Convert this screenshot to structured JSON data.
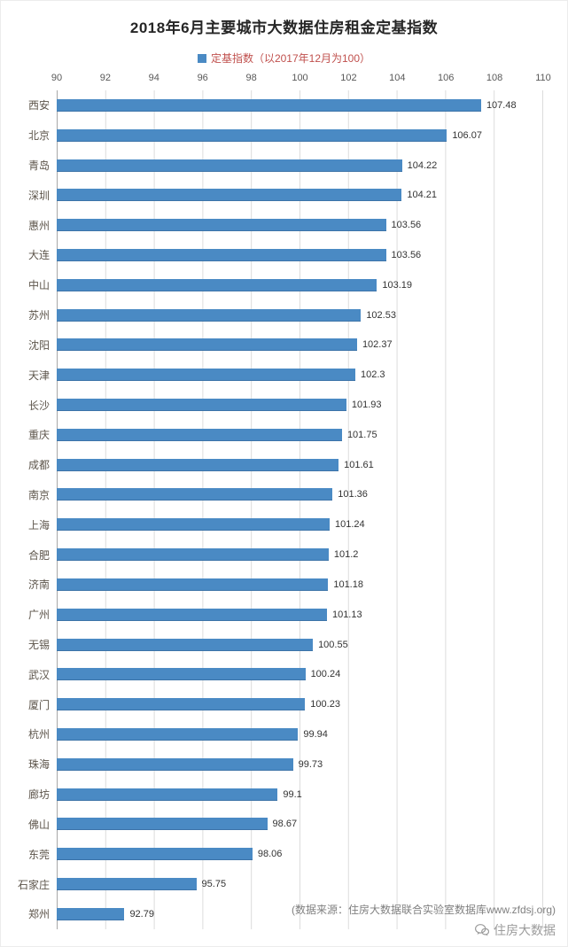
{
  "title": "2018年6月主要城市大数据住房租金定基指数",
  "legend": {
    "label": "定基指数（以2017年12月为100）",
    "swatch_color": "#4a8ac4"
  },
  "footer": {
    "source": "(数据来源：住房大数据联合实验室数据库www.zfdsj.org)",
    "watermark": "住房大数据"
  },
  "chart_data": {
    "type": "bar",
    "orientation": "horizontal",
    "title": "2018年6月主要城市大数据住房租金定基指数",
    "legend_entries": [
      "定基指数（以2017年12月为100）"
    ],
    "categories": [
      "西安",
      "北京",
      "青岛",
      "深圳",
      "惠州",
      "大连",
      "中山",
      "苏州",
      "沈阳",
      "天津",
      "长沙",
      "重庆",
      "成都",
      "南京",
      "上海",
      "合肥",
      "济南",
      "广州",
      "无锡",
      "武汉",
      "厦门",
      "杭州",
      "珠海",
      "廊坊",
      "佛山",
      "东莞",
      "石家庄",
      "郑州"
    ],
    "values": [
      107.48,
      106.07,
      104.22,
      104.21,
      103.56,
      103.56,
      103.19,
      102.53,
      102.37,
      102.3,
      101.93,
      101.75,
      101.61,
      101.36,
      101.24,
      101.2,
      101.18,
      101.13,
      100.55,
      100.24,
      100.23,
      99.94,
      99.73,
      99.1,
      98.67,
      98.06,
      95.75,
      92.79
    ],
    "value_labels": [
      "107.48",
      "106.07",
      "104.22",
      "104.21",
      "103.56",
      "103.56",
      "103.19",
      "102.53",
      "102.37",
      "102.3",
      "101.93",
      "101.75",
      "101.61",
      "101.36",
      "101.24",
      "101.2",
      "101.18",
      "101.13",
      "100.55",
      "100.24",
      "100.23",
      "99.94",
      "99.73",
      "99.1",
      "98.67",
      "98.06",
      "95.75",
      "92.79"
    ],
    "xlabel": "",
    "ylabel": "",
    "xlim": [
      90,
      110
    ],
    "x_ticks": [
      90,
      92,
      94,
      96,
      98,
      100,
      102,
      104,
      106,
      108,
      110
    ],
    "grid": true,
    "legend_position": "top",
    "bar_color": "#4a8ac4"
  }
}
